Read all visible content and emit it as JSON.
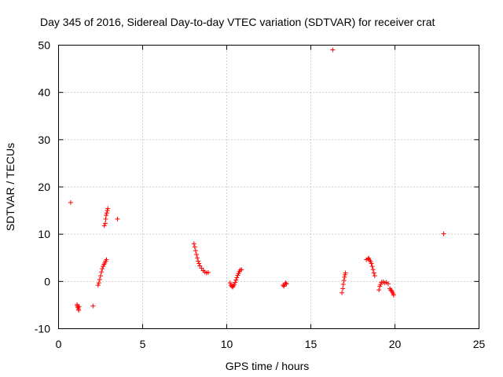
{
  "chart_data": {
    "type": "scatter",
    "title": "Day 345 of 2016, Sidereal Day-to-day VTEC variation (SDTVAR) for receiver crat",
    "xlabel": "GPS time / hours",
    "ylabel": "SDTVAR / TECUs",
    "xlim": [
      0,
      25
    ],
    "ylim": [
      -10,
      50
    ],
    "xticks": [
      0,
      5,
      10,
      15,
      20,
      25
    ],
    "yticks": [
      -10,
      0,
      10,
      20,
      30,
      40,
      50
    ],
    "grid": true,
    "marker": "+",
    "marker_color": "#ff0000",
    "series": [
      {
        "name": "SDTVAR",
        "points": [
          [
            0.72,
            16.7
          ],
          [
            1.1,
            -4.9
          ],
          [
            1.12,
            -5.2
          ],
          [
            1.15,
            -5.5
          ],
          [
            1.18,
            -5.8
          ],
          [
            1.2,
            -6.1
          ],
          [
            1.22,
            -5.3
          ],
          [
            2.05,
            -5.2
          ],
          [
            2.35,
            -0.8
          ],
          [
            2.4,
            -0.3
          ],
          [
            2.45,
            0.4
          ],
          [
            2.5,
            1.2
          ],
          [
            2.55,
            2.0
          ],
          [
            2.6,
            2.7
          ],
          [
            2.65,
            3.2
          ],
          [
            2.7,
            3.6
          ],
          [
            2.75,
            3.9
          ],
          [
            2.8,
            4.3
          ],
          [
            2.85,
            4.6
          ],
          [
            2.72,
            11.8
          ],
          [
            2.78,
            12.3
          ],
          [
            2.8,
            13.2
          ],
          [
            2.83,
            14.0
          ],
          [
            2.87,
            14.5
          ],
          [
            2.9,
            15.0
          ],
          [
            2.93,
            15.4
          ],
          [
            3.5,
            13.2
          ],
          [
            8.05,
            8.0
          ],
          [
            8.1,
            7.3
          ],
          [
            8.15,
            6.5
          ],
          [
            8.2,
            5.7
          ],
          [
            8.25,
            5.0
          ],
          [
            8.3,
            4.3
          ],
          [
            8.35,
            3.8
          ],
          [
            8.4,
            3.3
          ],
          [
            8.5,
            2.8
          ],
          [
            8.6,
            2.3
          ],
          [
            8.7,
            2.0
          ],
          [
            8.8,
            1.8
          ],
          [
            8.9,
            1.9
          ],
          [
            10.2,
            -0.3
          ],
          [
            10.25,
            -0.8
          ],
          [
            10.3,
            -1.0
          ],
          [
            10.35,
            -1.2
          ],
          [
            10.4,
            -0.9
          ],
          [
            10.45,
            -0.6
          ],
          [
            10.5,
            -0.2
          ],
          [
            10.55,
            0.3
          ],
          [
            10.6,
            0.8
          ],
          [
            10.65,
            1.3
          ],
          [
            10.7,
            1.7
          ],
          [
            10.75,
            2.1
          ],
          [
            10.8,
            2.4
          ],
          [
            10.88,
            2.5
          ],
          [
            13.35,
            -0.8
          ],
          [
            13.4,
            -1.0
          ],
          [
            13.45,
            -0.6
          ],
          [
            13.5,
            -0.3
          ],
          [
            13.55,
            -0.5
          ],
          [
            16.3,
            49.0
          ],
          [
            16.85,
            -2.4
          ],
          [
            16.9,
            -1.5
          ],
          [
            16.93,
            -0.6
          ],
          [
            16.97,
            0.2
          ],
          [
            17.0,
            0.9
          ],
          [
            17.03,
            1.4
          ],
          [
            17.06,
            1.8
          ],
          [
            18.3,
            4.6
          ],
          [
            18.4,
            4.8
          ],
          [
            18.45,
            4.9
          ],
          [
            18.5,
            4.5
          ],
          [
            18.55,
            4.2
          ],
          [
            18.6,
            3.8
          ],
          [
            18.65,
            3.2
          ],
          [
            18.7,
            2.5
          ],
          [
            18.75,
            1.8
          ],
          [
            18.8,
            1.2
          ],
          [
            19.05,
            -1.8
          ],
          [
            19.1,
            -1.0
          ],
          [
            19.15,
            -0.6
          ],
          [
            19.2,
            -0.2
          ],
          [
            19.3,
            -0.1
          ],
          [
            19.4,
            -0.3
          ],
          [
            19.5,
            -0.2
          ],
          [
            19.6,
            -0.5
          ],
          [
            19.7,
            -1.5
          ],
          [
            19.75,
            -1.8
          ],
          [
            19.8,
            -2.0
          ],
          [
            19.85,
            -2.3
          ],
          [
            19.9,
            -2.6
          ],
          [
            19.92,
            -2.9
          ],
          [
            22.9,
            10.1
          ]
        ]
      }
    ]
  }
}
